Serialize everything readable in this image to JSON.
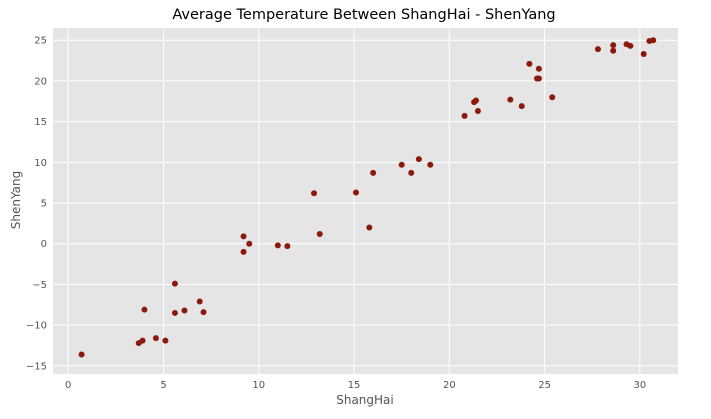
{
  "chart_data": {
    "type": "scatter",
    "title": "Average Temperature Between ShangHai - ShenYang",
    "xlabel": "ShangHai",
    "ylabel": "ShenYang",
    "xlim": [
      -0.8,
      32
    ],
    "ylim": [
      -16,
      26.5
    ],
    "x_ticks": [
      0,
      5,
      10,
      15,
      20,
      25,
      30
    ],
    "y_ticks": [
      -15,
      -10,
      -5,
      0,
      5,
      10,
      15,
      20,
      25
    ],
    "x_tick_labels": [
      "0",
      "5",
      "10",
      "15",
      "20",
      "25",
      "30"
    ],
    "y_tick_labels": [
      "−15",
      "−10",
      "−5",
      "0",
      "5",
      "10",
      "15",
      "20",
      "25"
    ],
    "grid": true,
    "legend": false,
    "colors": {
      "marker": "#8b1a0e",
      "plot_background": "#e5e5e5",
      "grid": "#ffffff",
      "axis_text": "#555555",
      "title_text": "#000000"
    },
    "points": [
      {
        "x": 0.7,
        "y": -13.6
      },
      {
        "x": 3.7,
        "y": -12.2
      },
      {
        "x": 3.9,
        "y": -11.9
      },
      {
        "x": 4.0,
        "y": -8.1
      },
      {
        "x": 4.6,
        "y": -11.6
      },
      {
        "x": 5.1,
        "y": -11.9
      },
      {
        "x": 5.6,
        "y": -4.9
      },
      {
        "x": 5.6,
        "y": -8.5
      },
      {
        "x": 6.1,
        "y": -8.2
      },
      {
        "x": 6.9,
        "y": -7.1
      },
      {
        "x": 7.1,
        "y": -8.4
      },
      {
        "x": 9.2,
        "y": 0.9
      },
      {
        "x": 9.2,
        "y": -1.0
      },
      {
        "x": 9.5,
        "y": 0.0
      },
      {
        "x": 11.0,
        "y": -0.2
      },
      {
        "x": 11.5,
        "y": -0.3
      },
      {
        "x": 12.9,
        "y": 6.2
      },
      {
        "x": 13.2,
        "y": 1.2
      },
      {
        "x": 15.1,
        "y": 6.3
      },
      {
        "x": 15.8,
        "y": 2.0
      },
      {
        "x": 16.0,
        "y": 8.7
      },
      {
        "x": 17.5,
        "y": 9.7
      },
      {
        "x": 18.0,
        "y": 8.7
      },
      {
        "x": 18.4,
        "y": 10.4
      },
      {
        "x": 19.0,
        "y": 9.7
      },
      {
        "x": 20.8,
        "y": 15.7
      },
      {
        "x": 21.3,
        "y": 17.4
      },
      {
        "x": 21.4,
        "y": 17.6
      },
      {
        "x": 21.5,
        "y": 16.3
      },
      {
        "x": 23.2,
        "y": 17.7
      },
      {
        "x": 23.8,
        "y": 16.9
      },
      {
        "x": 24.2,
        "y": 22.1
      },
      {
        "x": 24.6,
        "y": 20.3
      },
      {
        "x": 24.7,
        "y": 21.5
      },
      {
        "x": 24.7,
        "y": 20.3
      },
      {
        "x": 25.4,
        "y": 18.0
      },
      {
        "x": 27.8,
        "y": 23.9
      },
      {
        "x": 28.6,
        "y": 24.4
      },
      {
        "x": 28.6,
        "y": 23.7
      },
      {
        "x": 29.3,
        "y": 24.5
      },
      {
        "x": 29.5,
        "y": 24.3
      },
      {
        "x": 30.2,
        "y": 23.3
      },
      {
        "x": 30.5,
        "y": 24.9
      },
      {
        "x": 30.7,
        "y": 25.0
      }
    ]
  }
}
